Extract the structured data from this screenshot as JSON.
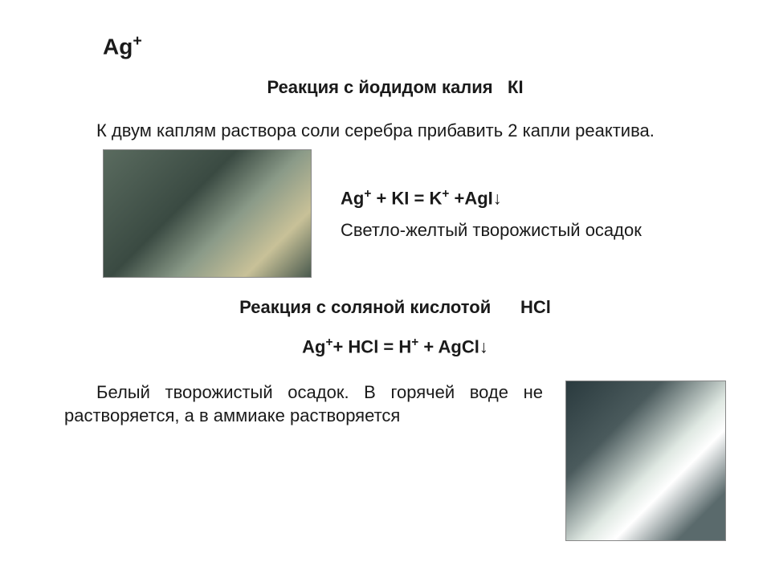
{
  "ion": {
    "symbol": "Ag",
    "charge": "+"
  },
  "reaction1": {
    "title_prefix": "Реакция с йодидом калия",
    "reagent_formula": "КI",
    "procedure": "К двум каплям раствора соли серебра прибавить 2 капли реактива.",
    "equation_lhs1": "Ag",
    "equation_lhs1_sup": "+",
    "equation_plus1": " + KI = K",
    "equation_k_sup": "+",
    "equation_plus2": " +AgI↓",
    "observation": "Светло-желтый творожистый осадок",
    "photo_alt": "test-tube-yellow-precipitate"
  },
  "reaction2": {
    "title_prefix": "Реакция  с  соляной кислотой",
    "reagent_formula": "HCl",
    "equation_lhs": "Ag",
    "equation_lhs_sup": "+",
    "equation_mid": "+ HCl = H",
    "equation_h_sup": "+",
    "equation_tail": " + AgCl↓",
    "observation": "Белый творожистый осадок. В горячей воде не растворяется, а в аммиаке растворяется",
    "photo_alt": "test-tube-white-precipitate"
  },
  "colors": {
    "text": "#1a1a1a",
    "background": "#ffffff"
  }
}
